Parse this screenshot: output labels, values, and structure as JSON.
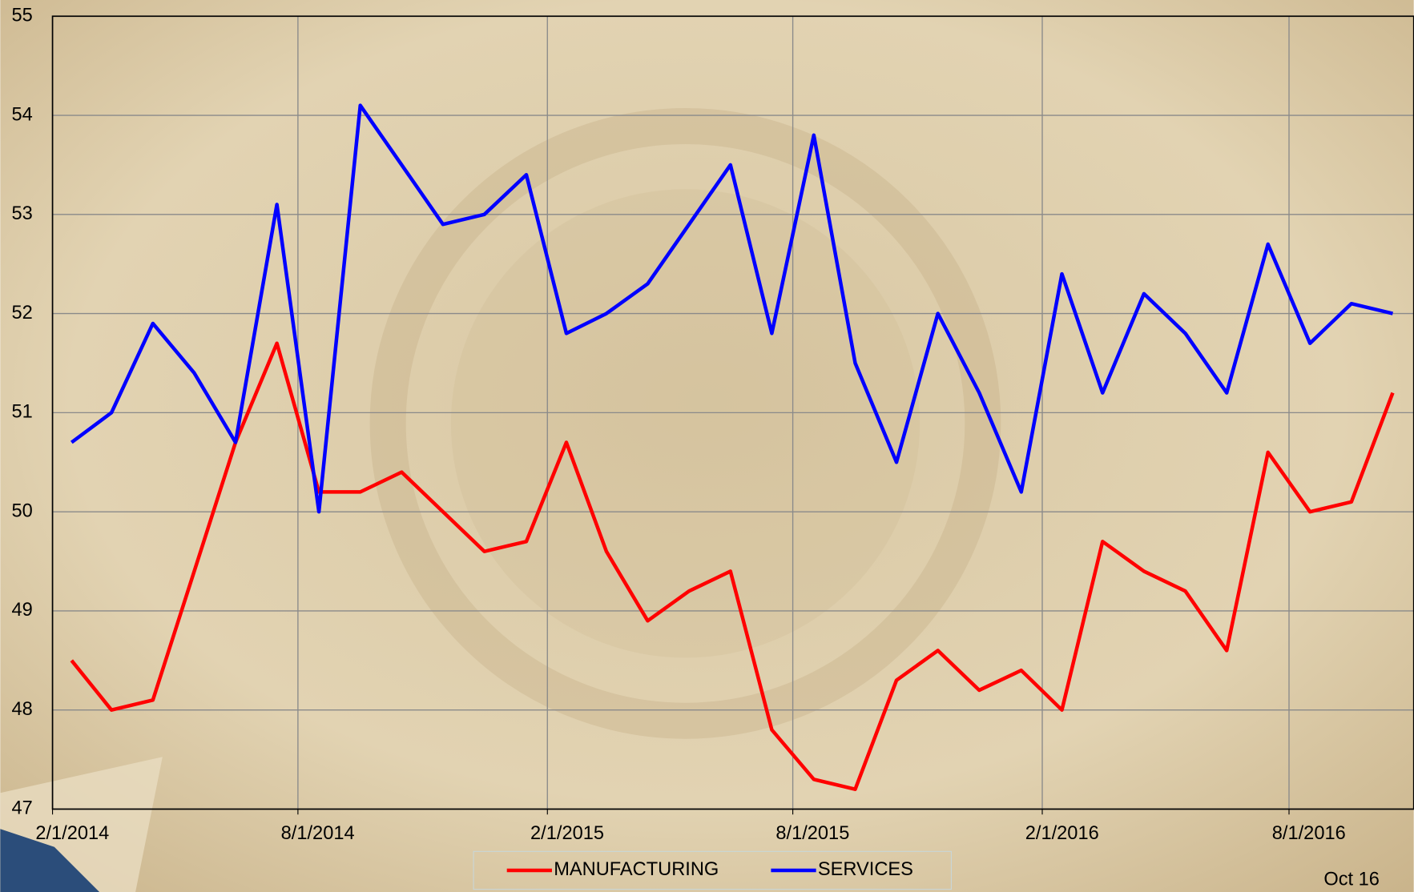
{
  "chart_data": {
    "type": "line",
    "x": [
      "2014-02",
      "2014-03",
      "2014-04",
      "2014-05",
      "2014-06",
      "2014-07",
      "2014-08",
      "2014-09",
      "2014-10",
      "2014-11",
      "2014-12",
      "2015-01",
      "2015-02",
      "2015-03",
      "2015-04",
      "2015-05",
      "2015-06",
      "2015-07",
      "2015-08",
      "2015-09",
      "2015-10",
      "2015-11",
      "2015-12",
      "2016-01",
      "2016-02",
      "2016-03",
      "2016-04",
      "2016-05",
      "2016-06",
      "2016-07",
      "2016-08",
      "2016-09",
      "2016-10"
    ],
    "series": [
      {
        "name": "MANUFACTURING",
        "color": "#ff0000",
        "values": [
          48.5,
          48.0,
          48.1,
          49.4,
          50.7,
          51.7,
          50.2,
          50.2,
          50.4,
          50.0,
          49.6,
          49.7,
          50.7,
          49.6,
          48.9,
          49.2,
          49.4,
          47.8,
          47.3,
          47.2,
          48.3,
          48.6,
          48.2,
          48.4,
          48.0,
          49.7,
          49.4,
          49.2,
          48.6,
          50.6,
          50.0,
          50.1,
          51.2
        ]
      },
      {
        "name": "SERVICES",
        "color": "#0000ff",
        "values": [
          50.7,
          51.0,
          51.9,
          51.4,
          50.7,
          53.1,
          50.0,
          54.1,
          53.5,
          52.9,
          53.0,
          53.4,
          51.8,
          52.0,
          52.3,
          52.9,
          53.5,
          51.8,
          53.8,
          51.5,
          50.5,
          52.0,
          51.2,
          50.2,
          52.4,
          51.2,
          52.2,
          51.8,
          51.2,
          52.7,
          51.7,
          52.1,
          52.0
        ]
      }
    ],
    "xlim": [
      "2014-02-01",
      "2016-11-01"
    ],
    "xticks": [
      {
        "value": "2014-02-01",
        "label": "2/1/2014"
      },
      {
        "value": "2014-08-01",
        "label": "8/1/2014"
      },
      {
        "value": "2015-02-01",
        "label": "2/1/2015"
      },
      {
        "value": "2015-08-01",
        "label": "8/1/2015"
      },
      {
        "value": "2016-02-01",
        "label": "2/1/2016"
      },
      {
        "value": "2016-08-01",
        "label": "8/1/2016"
      }
    ],
    "ylim": [
      47,
      55
    ],
    "yticks": [
      47,
      48,
      49,
      50,
      51,
      52,
      53,
      54,
      55
    ],
    "grid": true,
    "legend": "bottom",
    "annotation": "Oct 16"
  }
}
